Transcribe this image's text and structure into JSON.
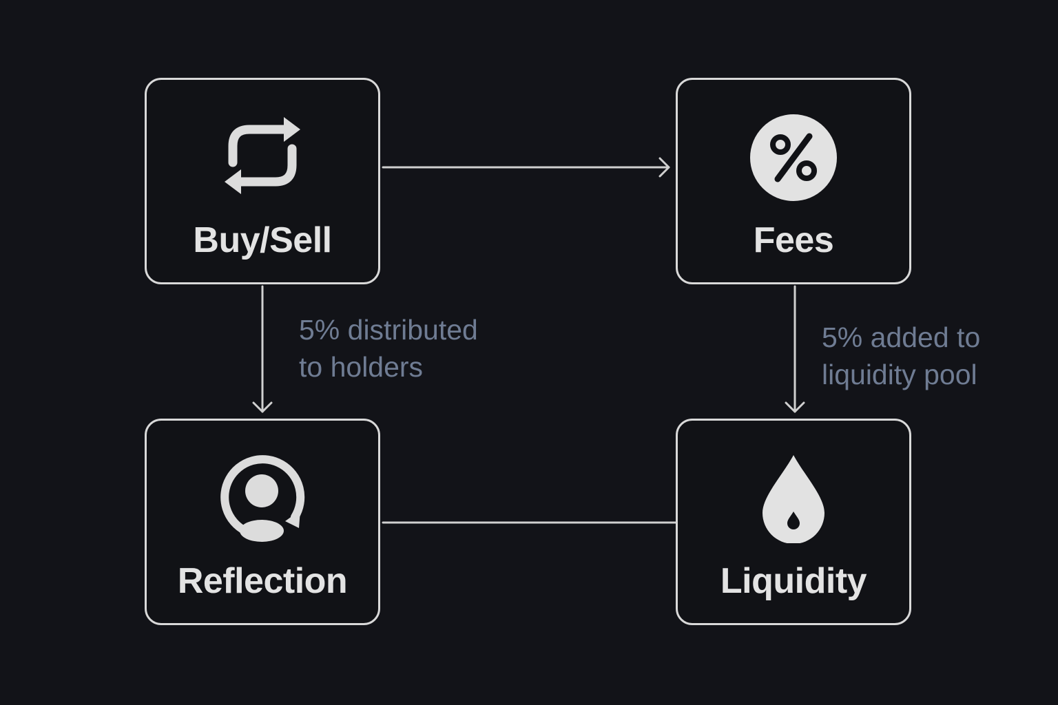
{
  "colors": {
    "background": "#121318",
    "box_border": "#d9d9d9",
    "label_text": "#e3e3e3",
    "note_text": "#6f7c93",
    "connector": "#d0d0d0"
  },
  "nodes": {
    "buy_sell": {
      "label": "Buy/Sell",
      "icon": "swap-arrows-icon"
    },
    "fees": {
      "label": "Fees",
      "icon": "percent-icon"
    },
    "reflection": {
      "label": "Reflection",
      "icon": "user-cycle-icon"
    },
    "liquidity": {
      "label": "Liquidity",
      "icon": "droplet-icon"
    }
  },
  "notes": {
    "left": "5% distributed\nto holders",
    "right": "5% added to\nliquidity pool"
  }
}
